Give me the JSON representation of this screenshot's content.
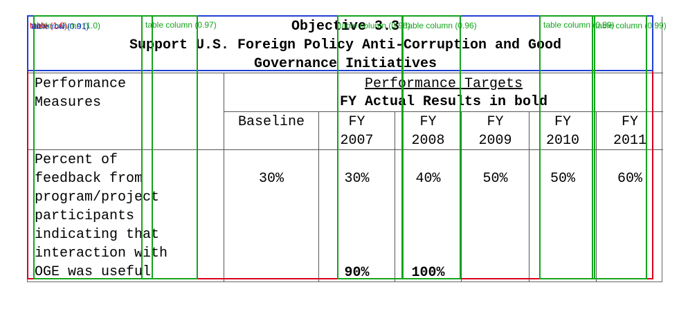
{
  "document": {
    "title_line1": "Objective 3.3",
    "title_line2": "Support U.S. Foreign Policy Anti-Corruption and Good",
    "title_line3": "Governance Initiatives",
    "measures_header_line1": "Performance",
    "measures_header_line2": "Measures",
    "targets_header": "Performance Targets",
    "targets_subheader": "FY Actual Results in bold",
    "columns": [
      {
        "line1": "Baseline",
        "line2": ""
      },
      {
        "line1": "FY",
        "line2": "2007"
      },
      {
        "line1": "FY",
        "line2": "2008"
      },
      {
        "line1": "FY",
        "line2": "2009"
      },
      {
        "line1": "FY",
        "line2": "2010"
      },
      {
        "line1": "FY",
        "line2": "2011"
      }
    ],
    "row": {
      "measure_lines": [
        "Percent of",
        "feedback from",
        "program/project",
        "participants",
        "indicating that",
        "interaction with",
        "OGE was useful"
      ],
      "targets": [
        "30%",
        "30%",
        "40%",
        "50%",
        "50%",
        "60%"
      ],
      "actuals": [
        "",
        "90%",
        "100%",
        "",
        "",
        ""
      ]
    }
  },
  "detections": {
    "table": {
      "label": "table (1.0)",
      "color": "#d8001a"
    },
    "table_row": {
      "label": "table row (0.91)",
      "color": "#1f3fd1"
    },
    "columns": [
      {
        "label": "table column (1.0)"
      },
      {
        "label": "table column (0.97)"
      },
      {
        "label": "table column (0.96)"
      },
      {
        "label": "table column (0.96)"
      },
      {
        "label": "table column (0.99)"
      },
      {
        "label": "table column (0.99)"
      }
    ],
    "column_color": "#14a31c"
  }
}
